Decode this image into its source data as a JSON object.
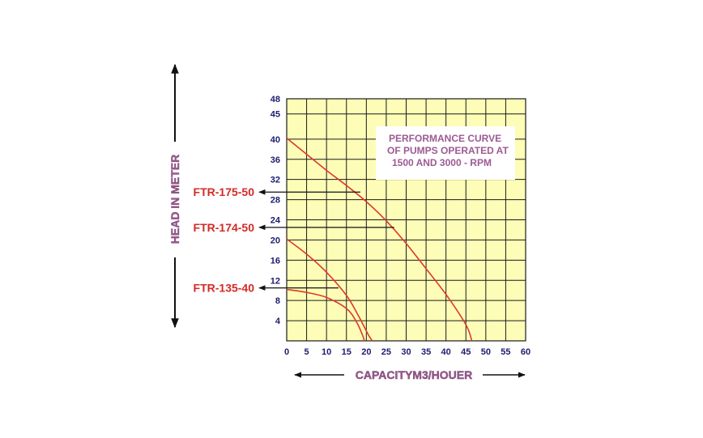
{
  "chart_data": {
    "type": "line",
    "xlabel": "CAPACITYM3/HOUER",
    "ylabel": "HEAD IN METER",
    "xlim": [
      0,
      60
    ],
    "ylim": [
      0,
      48
    ],
    "x_ticks": [
      0,
      5,
      10,
      15,
      20,
      25,
      30,
      35,
      40,
      45,
      50,
      55,
      60
    ],
    "y_ticks": [
      4,
      8,
      12,
      16,
      20,
      24,
      28,
      32,
      36,
      40,
      45,
      48
    ],
    "y_tick_labels": [
      "4",
      "8",
      "12",
      "16",
      "20",
      "24",
      "28",
      "32",
      "36",
      "40",
      "45",
      "48"
    ],
    "grid": true,
    "annotation": [
      "PERFORMANCE CURVE",
      "OF PUMPS OPERATED AT",
      "1500 AND 3000 - RPM"
    ],
    "series": [
      {
        "name": "FTR-175-50",
        "points": [
          [
            0,
            40.2
          ],
          [
            5,
            37.0
          ],
          [
            10,
            33.8
          ],
          [
            15,
            30.8
          ],
          [
            20,
            27.6
          ],
          [
            25,
            23.8
          ],
          [
            30,
            19.3
          ],
          [
            35,
            14.3
          ],
          [
            40,
            9.2
          ],
          [
            45,
            3.2
          ],
          [
            46.5,
            0
          ]
        ],
        "marker_x": 18.5,
        "marker_y": 29.5
      },
      {
        "name": "FTR-174-50",
        "points": [
          [
            0,
            20.2
          ],
          [
            5,
            17.2
          ],
          [
            10,
            13.6
          ],
          [
            15,
            9.0
          ],
          [
            18,
            5.0
          ],
          [
            20.5,
            1.2
          ],
          [
            21.5,
            0
          ]
        ],
        "marker_x": 27,
        "marker_y": 22.5
      },
      {
        "name": "FTR-135-40",
        "points": [
          [
            0,
            10.2
          ],
          [
            5,
            9.6
          ],
          [
            10,
            8.6
          ],
          [
            15,
            6.4
          ],
          [
            17.5,
            3.8
          ],
          [
            19,
            1.2
          ],
          [
            19.5,
            0
          ]
        ],
        "marker_x": 13,
        "marker_y": 10.5
      }
    ],
    "colors": {
      "background": "#fdfdb8",
      "grid": "#1a1a1a",
      "curve": "#e0392a",
      "tick": "#1c1c6e",
      "series_label": "#d42a26",
      "axis_title": "#9c5a92"
    }
  }
}
